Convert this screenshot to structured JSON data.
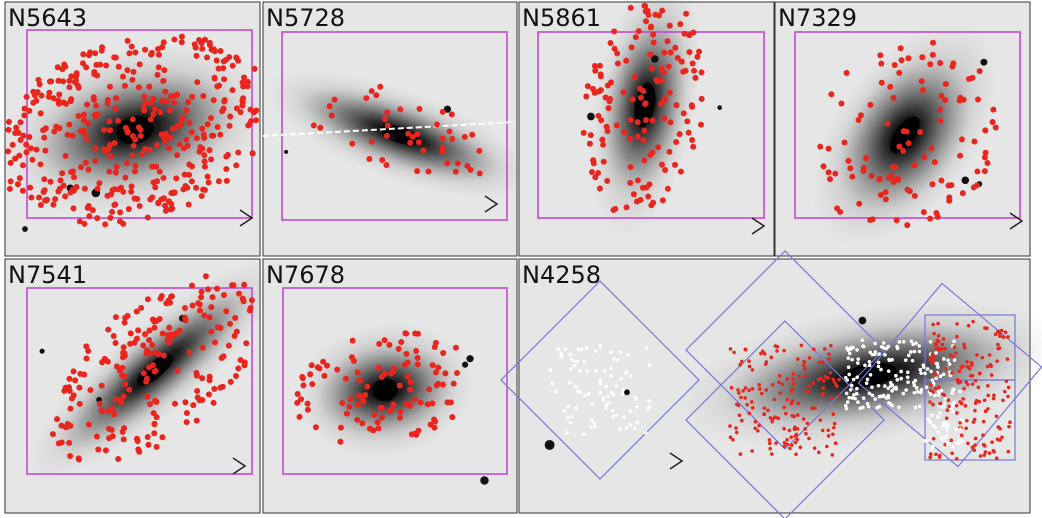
{
  "panels": [
    {
      "label": "N5643"
    },
    {
      "label": "N5728"
    },
    {
      "label": "N5861"
    },
    {
      "label": "N7329"
    },
    {
      "label": "N7541"
    },
    {
      "label": "N7678"
    },
    {
      "label": "N4258"
    }
  ]
}
